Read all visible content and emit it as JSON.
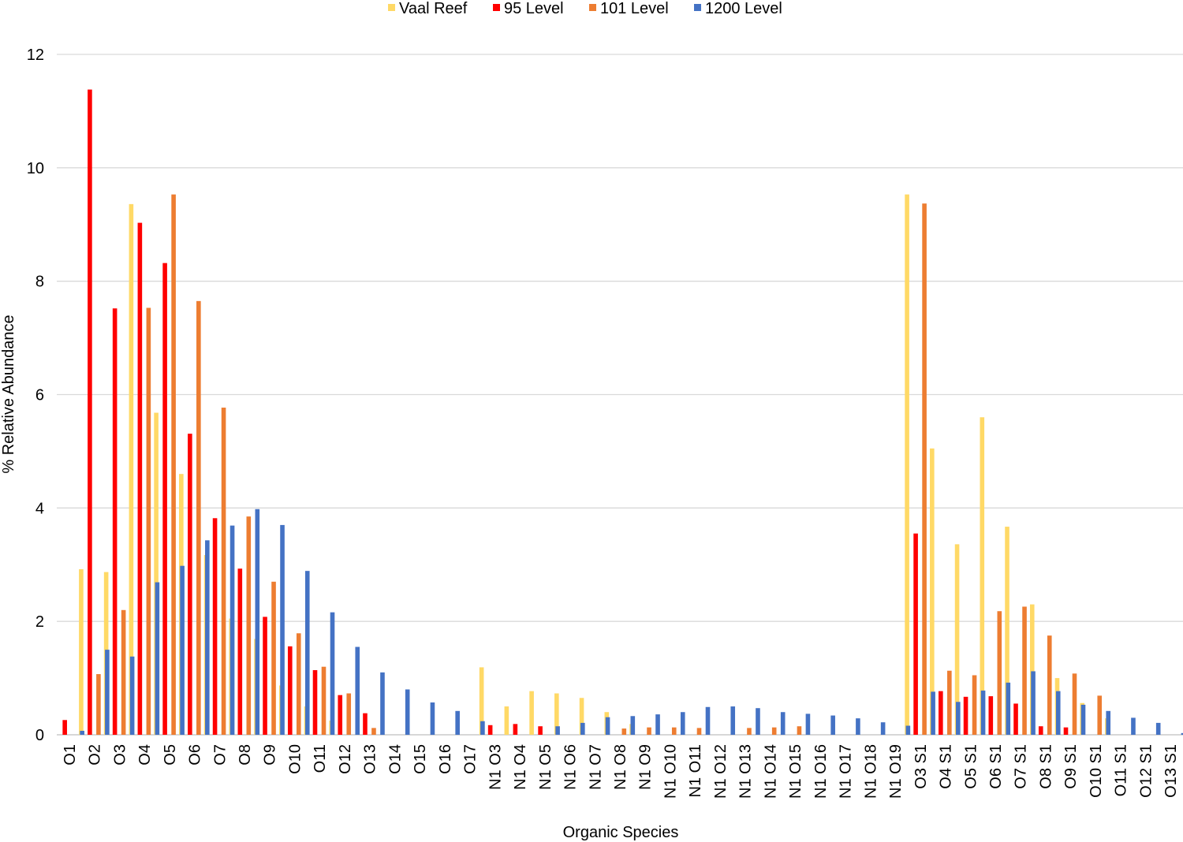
{
  "chart_data": {
    "type": "bar",
    "title": "",
    "xlabel": "Organic Species",
    "ylabel": "% Relative Abundance",
    "ylim": [
      0,
      12
    ],
    "yticks": [
      0,
      2,
      4,
      6,
      8,
      10,
      12
    ],
    "grid": true,
    "legend_position": "top-center",
    "categories": [
      "O1",
      "O2",
      "O3",
      "O4",
      "O5",
      "O6",
      "O7",
      "O8",
      "O9",
      "O10",
      "O11",
      "O12",
      "O13",
      "O14",
      "O15",
      "O16",
      "O17",
      "N1 O3",
      "N1 O4",
      "N1 O5",
      "N1 O6",
      "N1 O7",
      "N1 O8",
      "N1 O9",
      "N1 O10",
      "N1 O11",
      "N1 O12",
      "N1 O13",
      "N1 O14",
      "N1 O15",
      "N1 O16",
      "N1 O17",
      "N1 O18",
      "N1 O19",
      "O3 S1",
      "O4 S1",
      "O5 S1",
      "O6 S1",
      "O7 S1",
      "O8 S1",
      "O9 S1",
      "O10 S1",
      "O11 S1",
      "O12 S1",
      "O13 S1"
    ],
    "series": [
      {
        "name": "Vaal Reef",
        "color": "#FFD966",
        "values": [
          0,
          2.92,
          2.87,
          9.36,
          5.68,
          4.6,
          3.17,
          2.05,
          1.69,
          0.87,
          0.5,
          0.25,
          0,
          0,
          0,
          0,
          0,
          1.19,
          0.5,
          0.77,
          0.73,
          0.65,
          0.4,
          0.19,
          0,
          0,
          0,
          0,
          0,
          0,
          0,
          0,
          0,
          0,
          9.53,
          5.05,
          3.36,
          5.6,
          3.67,
          2.3,
          1.0,
          0.56,
          0.29,
          0,
          0
        ]
      },
      {
        "name": "95 Level",
        "color": "#FF0000",
        "values": [
          0.26,
          11.38,
          7.52,
          9.03,
          8.32,
          5.31,
          3.82,
          2.93,
          2.08,
          1.56,
          1.14,
          0.7,
          0.38,
          0,
          0,
          0,
          0,
          0.17,
          0.19,
          0.15,
          0,
          0,
          0,
          0,
          0,
          0,
          0,
          0,
          0,
          0,
          0,
          0,
          0,
          0,
          3.55,
          0.77,
          0.67,
          0.68,
          0.55,
          0.15,
          0.13,
          0,
          0,
          0,
          0
        ]
      },
      {
        "name": "101 Level",
        "color": "#ED7D31",
        "values": [
          0,
          1.07,
          2.2,
          7.53,
          9.53,
          7.65,
          5.77,
          3.85,
          2.7,
          1.79,
          1.2,
          0.73,
          0.12,
          0,
          0,
          0,
          0,
          0,
          0,
          0,
          0,
          0,
          0.11,
          0.13,
          0.13,
          0.12,
          0,
          0.12,
          0.13,
          0.15,
          0,
          0,
          0,
          0,
          9.37,
          1.13,
          1.05,
          2.18,
          2.26,
          1.75,
          1.08,
          0.69,
          0,
          0,
          0
        ]
      },
      {
        "name": "1200 Level",
        "color": "#4472C4",
        "values": [
          0.07,
          1.5,
          1.38,
          2.69,
          2.98,
          3.43,
          3.69,
          3.98,
          3.7,
          2.89,
          2.16,
          1.55,
          1.1,
          0.8,
          0.57,
          0.42,
          0.24,
          0,
          0,
          0.15,
          0.21,
          0.31,
          0.33,
          0.36,
          0.4,
          0.49,
          0.5,
          0.47,
          0.4,
          0.37,
          0.34,
          0.29,
          0.22,
          0.16,
          0.76,
          0.58,
          0.78,
          0.92,
          1.12,
          0.77,
          0.53,
          0.42,
          0.3,
          0.21,
          0.03
        ]
      }
    ]
  }
}
